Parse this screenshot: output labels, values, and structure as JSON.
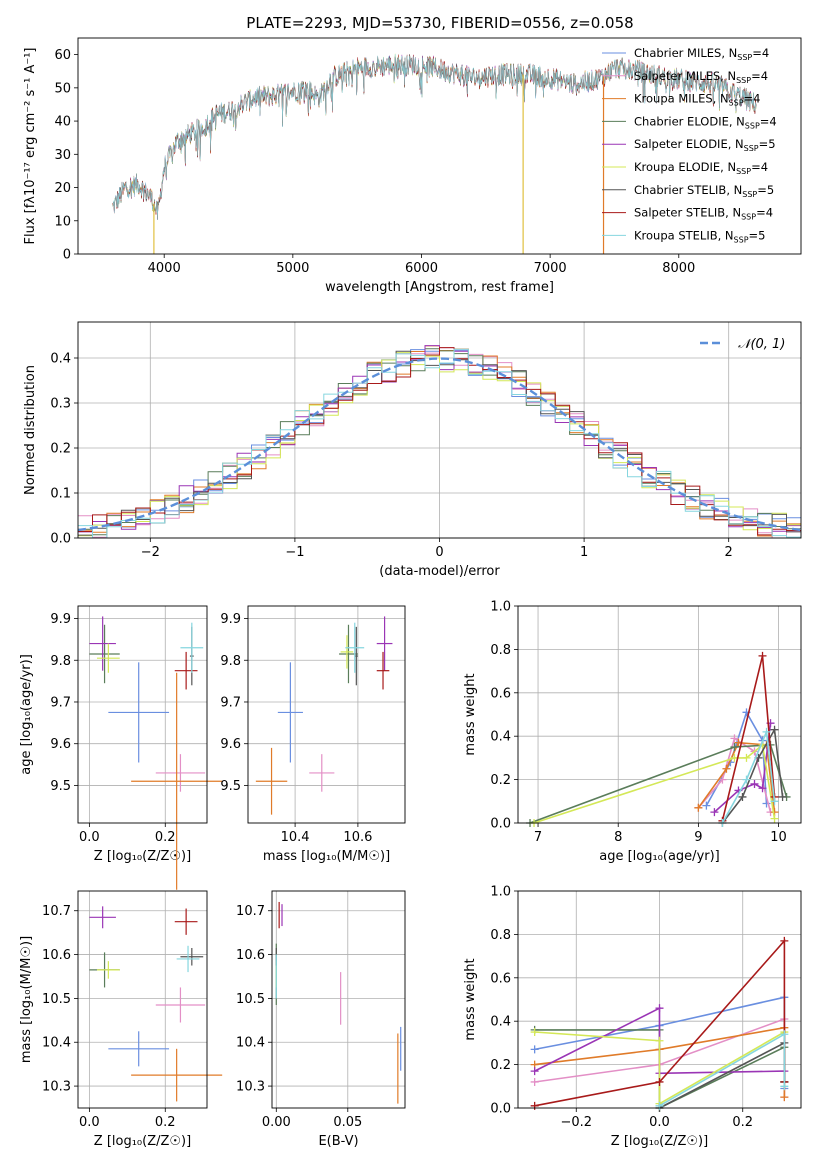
{
  "figure": {
    "title": "PLATE=2293, MJD=53730, FIBERID=0556, z=0.058"
  },
  "colors": {
    "Chabrier MILES": "#6a8fe0",
    "Salpeter MILES": "#e38fc6",
    "Kroupa MILES": "#e07b29",
    "Chabrier ELODIE": "#5a7d5a",
    "Salpeter ELODIE": "#9a35b5",
    "Kroupa ELODIE": "#d4e857",
    "Chabrier STELIB": "#555555",
    "Salpeter STELIB": "#a81a1a",
    "Kroupa STELIB": "#86d6df"
  },
  "chart_data": [
    {
      "id": "spectrum",
      "type": "line",
      "title": "PLATE=2293, MJD=53730, FIBERID=0556, z=0.058",
      "xlabel": "wavelength [Angstrom, rest frame]",
      "ylabel": "Flux [fλ10⁻¹⁷ erg cm⁻² s⁻¹ A⁻¹]",
      "xlim": [
        3330,
        8950
      ],
      "ylim": [
        0,
        65
      ],
      "xticks": [
        4000,
        5000,
        6000,
        7000,
        8000
      ],
      "yticks": [
        0,
        10,
        20,
        30,
        40,
        50,
        60
      ],
      "grid": false,
      "legend_position": "right",
      "continuum": [
        [
          3600,
          14
        ],
        [
          3700,
          20
        ],
        [
          3800,
          21
        ],
        [
          3900,
          17
        ],
        [
          3950,
          12
        ],
        [
          4000,
          26
        ],
        [
          4100,
          34
        ],
        [
          4200,
          36
        ],
        [
          4300,
          38
        ],
        [
          4400,
          42
        ],
        [
          4500,
          43
        ],
        [
          4700,
          47
        ],
        [
          4900,
          48
        ],
        [
          5100,
          50
        ],
        [
          5200,
          47
        ],
        [
          5300,
          53
        ],
        [
          5500,
          56
        ],
        [
          5800,
          57
        ],
        [
          6000,
          57
        ],
        [
          6200,
          55
        ],
        [
          6400,
          53
        ],
        [
          6600,
          54
        ],
        [
          6800,
          54
        ],
        [
          7000,
          53
        ],
        [
          7100,
          52
        ],
        [
          7200,
          51
        ],
        [
          7400,
          53
        ],
        [
          7500,
          56
        ],
        [
          7700,
          55
        ],
        [
          7900,
          53
        ],
        [
          8100,
          52
        ],
        [
          8300,
          51
        ],
        [
          8500,
          47
        ],
        [
          8600,
          45
        ]
      ],
      "series": [
        {
          "name": "Chabrier MILES",
          "nssp": "4"
        },
        {
          "name": "Salpeter MILES",
          "nssp": "4"
        },
        {
          "name": "Kroupa MILES",
          "nssp": "4"
        },
        {
          "name": "Chabrier ELODIE",
          "nssp": "4"
        },
        {
          "name": "Salpeter ELODIE",
          "nssp": "5"
        },
        {
          "name": "Kroupa ELODIE",
          "nssp": "4"
        },
        {
          "name": "Chabrier STELIB",
          "nssp": "5"
        },
        {
          "name": "Salpeter STELIB",
          "nssp": "4"
        },
        {
          "name": "Kroupa STELIB",
          "nssp": "5"
        }
      ]
    },
    {
      "id": "residuals",
      "type": "line",
      "xlabel": "(data-model)/error",
      "ylabel": "Normed distribution",
      "xlim": [
        -2.5,
        2.5
      ],
      "ylim": [
        0,
        0.48
      ],
      "xticks": [
        -2,
        -1,
        0,
        1,
        2
      ],
      "xticklabels": [
        "−2",
        "−1",
        "0",
        "1",
        "2"
      ],
      "yticks": [
        0.0,
        0.1,
        0.2,
        0.3,
        0.4
      ],
      "yticklabels": [
        "0.0",
        "0.1",
        "0.2",
        "0.3",
        "0.4"
      ],
      "grid": true,
      "legend_label": "𝒩(0, 1)",
      "legend_position": "top-right",
      "reference_color": "#5b8fd9"
    },
    {
      "id": "age-vs-Z",
      "type": "scatter",
      "xlabel": "Z [log₁₀(Z/Z☉)]",
      "ylabel": "age  [log₁₀(age/yr)]",
      "xlim": [
        -0.03,
        0.31
      ],
      "ylim": [
        9.41,
        9.93
      ],
      "xticks": [
        0.0,
        0.2
      ],
      "xticklabels": [
        "0.0",
        "0.2"
      ],
      "yticks": [
        9.5,
        9.6,
        9.7,
        9.8,
        9.9
      ],
      "grid": true,
      "points": [
        {
          "series": "Chabrier MILES",
          "x": 0.13,
          "y": 9.675,
          "xerr": 0.08,
          "yerr": 0.12
        },
        {
          "series": "Salpeter MILES",
          "x": 0.24,
          "y": 9.53,
          "xerr": 0.065,
          "yerr": 0.045
        },
        {
          "series": "Kroupa MILES",
          "x": 0.23,
          "y": 9.51,
          "xerr": 0.12,
          "yerr": 0.26
        },
        {
          "series": "Chabrier ELODIE",
          "x": 0.04,
          "y": 9.815,
          "xerr": 0.04,
          "yerr": 0.07
        },
        {
          "series": "Salpeter ELODIE",
          "x": 0.035,
          "y": 9.84,
          "xerr": 0.035,
          "yerr": 0.065
        },
        {
          "series": "Kroupa ELODIE",
          "x": 0.05,
          "y": 9.805,
          "xerr": 0.03,
          "yerr": 0.035
        },
        {
          "series": "Chabrier STELIB",
          "x": 0.27,
          "y": 9.81,
          "xerr": 0.005,
          "yerr": 0.07
        },
        {
          "series": "Salpeter STELIB",
          "x": 0.255,
          "y": 9.775,
          "xerr": 0.03,
          "yerr": 0.045
        },
        {
          "series": "Kroupa STELIB",
          "x": 0.27,
          "y": 9.83,
          "xerr": 0.03,
          "yerr": 0.06
        }
      ]
    },
    {
      "id": "age-vs-mass",
      "type": "scatter",
      "xlabel": "mass [log₁₀(M/M☉)]",
      "xlim": [
        10.25,
        10.75
      ],
      "ylim": [
        9.41,
        9.93
      ],
      "xticks": [
        10.4,
        10.6
      ],
      "xticklabels": [
        "10.4",
        "10.6"
      ],
      "yticks": [
        9.5,
        9.6,
        9.7,
        9.8,
        9.9
      ],
      "grid": true,
      "points": [
        {
          "series": "Chabrier MILES",
          "x": 10.385,
          "y": 9.675,
          "xerr": 0.04,
          "yerr": 0.12
        },
        {
          "series": "Salpeter MILES",
          "x": 10.485,
          "y": 9.53,
          "xerr": 0.04,
          "yerr": 0.045
        },
        {
          "series": "Kroupa MILES",
          "x": 10.325,
          "y": 9.51,
          "xerr": 0.05,
          "yerr": 0.08
        },
        {
          "series": "Chabrier ELODIE",
          "x": 10.57,
          "y": 9.815,
          "xerr": 0.03,
          "yerr": 0.07
        },
        {
          "series": "Salpeter ELODIE",
          "x": 10.685,
          "y": 9.84,
          "xerr": 0.025,
          "yerr": 0.065
        },
        {
          "series": "Kroupa ELODIE",
          "x": 10.565,
          "y": 9.82,
          "xerr": 0.02,
          "yerr": 0.04
        },
        {
          "series": "Chabrier STELIB",
          "x": 10.595,
          "y": 9.81,
          "xerr": 0.005,
          "yerr": 0.07
        },
        {
          "series": "Salpeter STELIB",
          "x": 10.68,
          "y": 9.775,
          "xerr": 0.02,
          "yerr": 0.045
        },
        {
          "series": "Kroupa STELIB",
          "x": 10.59,
          "y": 9.83,
          "xerr": 0.03,
          "yerr": 0.06
        }
      ]
    },
    {
      "id": "weight-vs-age",
      "type": "line",
      "xlabel": "age  [log₁₀(age/yr)]",
      "ylabel": "mass weight",
      "xlim": [
        6.75,
        10.28
      ],
      "ylim": [
        0,
        1
      ],
      "xticks": [
        7,
        8,
        9,
        10
      ],
      "yticks": [
        0.0,
        0.2,
        0.4,
        0.6,
        0.8,
        1.0
      ],
      "yticklabels": [
        "0.0",
        "0.2",
        "0.4",
        "0.6",
        "0.8",
        "1.0"
      ],
      "grid": true,
      "series": [
        {
          "name": "Chabrier MILES",
          "points": [
            [
              9.1,
              0.08
            ],
            [
              9.4,
              0.28
            ],
            [
              9.6,
              0.51
            ],
            [
              9.8,
              0.38
            ],
            [
              9.85,
              0.09
            ]
          ]
        },
        {
          "name": "Salpeter MILES",
          "points": [
            [
              9.0,
              0.07
            ],
            [
              9.3,
              0.2
            ],
            [
              9.45,
              0.39
            ],
            [
              9.7,
              0.33
            ],
            [
              9.9,
              0.05
            ]
          ]
        },
        {
          "name": "Kroupa MILES",
          "points": [
            [
              9.0,
              0.07
            ],
            [
              9.35,
              0.25
            ],
            [
              9.5,
              0.37
            ],
            [
              9.85,
              0.36
            ],
            [
              9.95,
              0.05
            ]
          ]
        },
        {
          "name": "Chabrier ELODIE",
          "points": [
            [
              6.9,
              0.0
            ],
            [
              9.45,
              0.35
            ],
            [
              9.9,
              0.36
            ],
            [
              10.1,
              0.12
            ]
          ]
        },
        {
          "name": "Salpeter ELODIE",
          "points": [
            [
              9.2,
              0.05
            ],
            [
              9.5,
              0.15
            ],
            [
              9.7,
              0.18
            ],
            [
              9.8,
              0.16
            ],
            [
              9.9,
              0.46
            ]
          ]
        },
        {
          "name": "Kroupa ELODIE",
          "points": [
            [
              6.95,
              0.0
            ],
            [
              9.45,
              0.3
            ],
            [
              9.6,
              0.3
            ],
            [
              9.8,
              0.36
            ],
            [
              9.95,
              0.02
            ]
          ]
        },
        {
          "name": "Chabrier STELIB",
          "points": [
            [
              9.3,
              0.0
            ],
            [
              9.55,
              0.12
            ],
            [
              9.75,
              0.3
            ],
            [
              9.95,
              0.43
            ],
            [
              10.05,
              0.12
            ]
          ]
        },
        {
          "name": "Salpeter STELIB",
          "points": [
            [
              9.3,
              0.01
            ],
            [
              9.8,
              0.77
            ],
            [
              9.95,
              0.12
            ]
          ]
        },
        {
          "name": "Kroupa STELIB",
          "points": [
            [
              9.3,
              0.0
            ],
            [
              9.6,
              0.2
            ],
            [
              9.85,
              0.42
            ],
            [
              9.95,
              0.1
            ]
          ]
        }
      ]
    },
    {
      "id": "mass-vs-Z",
      "type": "scatter",
      "xlabel": "Z [log₁₀(Z/Z☉)]",
      "ylabel": "mass [log₁₀(M/M☉)]",
      "xlim": [
        -0.03,
        0.31
      ],
      "ylim": [
        10.25,
        10.745
      ],
      "xticks": [
        0.0,
        0.2
      ],
      "xticklabels": [
        "0.0",
        "0.2"
      ],
      "yticks": [
        10.3,
        10.4,
        10.5,
        10.6,
        10.7
      ],
      "grid": true,
      "points": [
        {
          "series": "Chabrier MILES",
          "x": 0.13,
          "y": 10.385,
          "xerr": 0.08,
          "yerr": 0.04
        },
        {
          "series": "Salpeter MILES",
          "x": 0.24,
          "y": 10.485,
          "xerr": 0.065,
          "yerr": 0.04
        },
        {
          "series": "Kroupa MILES",
          "x": 0.23,
          "y": 10.325,
          "xerr": 0.12,
          "yerr": 0.06
        },
        {
          "series": "Chabrier ELODIE",
          "x": 0.04,
          "y": 10.565,
          "xerr": 0.04,
          "yerr": 0.04
        },
        {
          "series": "Salpeter ELODIE",
          "x": 0.035,
          "y": 10.685,
          "xerr": 0.035,
          "yerr": 0.025
        },
        {
          "series": "Kroupa ELODIE",
          "x": 0.05,
          "y": 10.565,
          "xerr": 0.03,
          "yerr": 0.02
        },
        {
          "series": "Chabrier STELIB",
          "x": 0.27,
          "y": 10.595,
          "xerr": 0.03,
          "yerr": 0.02
        },
        {
          "series": "Salpeter STELIB",
          "x": 0.255,
          "y": 10.675,
          "xerr": 0.03,
          "yerr": 0.03
        },
        {
          "series": "Kroupa STELIB",
          "x": 0.26,
          "y": 10.59,
          "xerr": 0.03,
          "yerr": 0.03
        }
      ]
    },
    {
      "id": "mass-vs-EBV",
      "type": "scatter",
      "xlabel": "E(B-V)",
      "xlim": [
        -0.003,
        0.09
      ],
      "ylim": [
        10.25,
        10.745
      ],
      "xticks": [
        0.0,
        0.05
      ],
      "xticklabels": [
        "0.00",
        "0.05"
      ],
      "yticks": [
        10.3,
        10.4,
        10.5,
        10.6,
        10.7
      ],
      "grid": true,
      "points": [
        {
          "series": "Chabrier MILES",
          "x": 0.087,
          "y": 10.385,
          "xerr": 0,
          "yerr": 0.05
        },
        {
          "series": "Salpeter MILES",
          "x": 0.045,
          "y": 10.5,
          "xerr": 0,
          "yerr": 0.06
        },
        {
          "series": "Kroupa MILES",
          "x": 0.085,
          "y": 10.34,
          "xerr": 0,
          "yerr": 0.08
        },
        {
          "series": "Chabrier ELODIE",
          "x": 0.0,
          "y": 10.555,
          "xerr": 0,
          "yerr": 0.07
        },
        {
          "series": "Salpeter ELODIE",
          "x": 0.004,
          "y": 10.69,
          "xerr": 0,
          "yerr": 0.025
        },
        {
          "series": "Kroupa ELODIE",
          "x": 0.0,
          "y": 10.555,
          "xerr": 0,
          "yerr": 0.03
        },
        {
          "series": "Chabrier STELIB",
          "x": 0.0,
          "y": 10.595,
          "xerr": 0,
          "yerr": 0.02
        },
        {
          "series": "Salpeter STELIB",
          "x": 0.002,
          "y": 10.69,
          "xerr": 0,
          "yerr": 0.03
        },
        {
          "series": "Kroupa STELIB",
          "x": 0.0,
          "y": 10.55,
          "xerr": 0,
          "yerr": 0.05
        }
      ]
    },
    {
      "id": "weight-vs-Z",
      "type": "line",
      "xlabel": "Z [log₁₀(Z/Z☉)]",
      "ylabel": "mass weight",
      "xlim": [
        -0.34,
        0.34
      ],
      "ylim": [
        0,
        1
      ],
      "xticks": [
        -0.2,
        0.0,
        0.2
      ],
      "xticklabels": [
        "−0.2",
        "0.0",
        "0.2"
      ],
      "yticks": [
        0.0,
        0.2,
        0.4,
        0.6,
        0.8,
        1.0
      ],
      "yticklabels": [
        "0.0",
        "0.2",
        "0.4",
        "0.6",
        "0.8",
        "1.0"
      ],
      "grid": true,
      "series": [
        {
          "name": "Chabrier MILES",
          "points": [
            [
              -0.3,
              0.27
            ],
            [
              0.0,
              0.38
            ],
            [
              0.3,
              0.51
            ],
            [
              0.3,
              0.09
            ]
          ]
        },
        {
          "name": "Salpeter MILES",
          "points": [
            [
              -0.3,
              0.12
            ],
            [
              0.0,
              0.2
            ],
            [
              0.3,
              0.41
            ],
            [
              0.3,
              0.05
            ]
          ]
        },
        {
          "name": "Kroupa MILES",
          "points": [
            [
              -0.3,
              0.2
            ],
            [
              0.0,
              0.27
            ],
            [
              0.3,
              0.37
            ],
            [
              0.3,
              0.05
            ]
          ]
        },
        {
          "name": "Chabrier ELODIE",
          "points": [
            [
              -0.3,
              0.36
            ],
            [
              0.0,
              0.36
            ],
            [
              0.0,
              0.0
            ],
            [
              0.3,
              0.28
            ],
            [
              0.3,
              0.12
            ]
          ]
        },
        {
          "name": "Salpeter ELODIE",
          "points": [
            [
              -0.3,
              0.17
            ],
            [
              0.0,
              0.46
            ],
            [
              0.0,
              0.16
            ],
            [
              0.3,
              0.17
            ]
          ]
        },
        {
          "name": "Kroupa ELODIE",
          "points": [
            [
              -0.3,
              0.35
            ],
            [
              0.0,
              0.31
            ],
            [
              0.0,
              0.02
            ],
            [
              0.3,
              0.35
            ]
          ]
        },
        {
          "name": "Chabrier STELIB",
          "points": [
            [
              0.0,
              0.0
            ],
            [
              0.3,
              0.3
            ],
            [
              0.3,
              0.12
            ]
          ]
        },
        {
          "name": "Salpeter STELIB",
          "points": [
            [
              -0.3,
              0.01
            ],
            [
              0.0,
              0.12
            ],
            [
              0.3,
              0.77
            ],
            [
              0.3,
              0.12
            ]
          ]
        },
        {
          "name": "Kroupa STELIB",
          "points": [
            [
              0.0,
              0.01
            ],
            [
              0.3,
              0.34
            ],
            [
              0.3,
              0.1
            ]
          ]
        }
      ]
    }
  ]
}
